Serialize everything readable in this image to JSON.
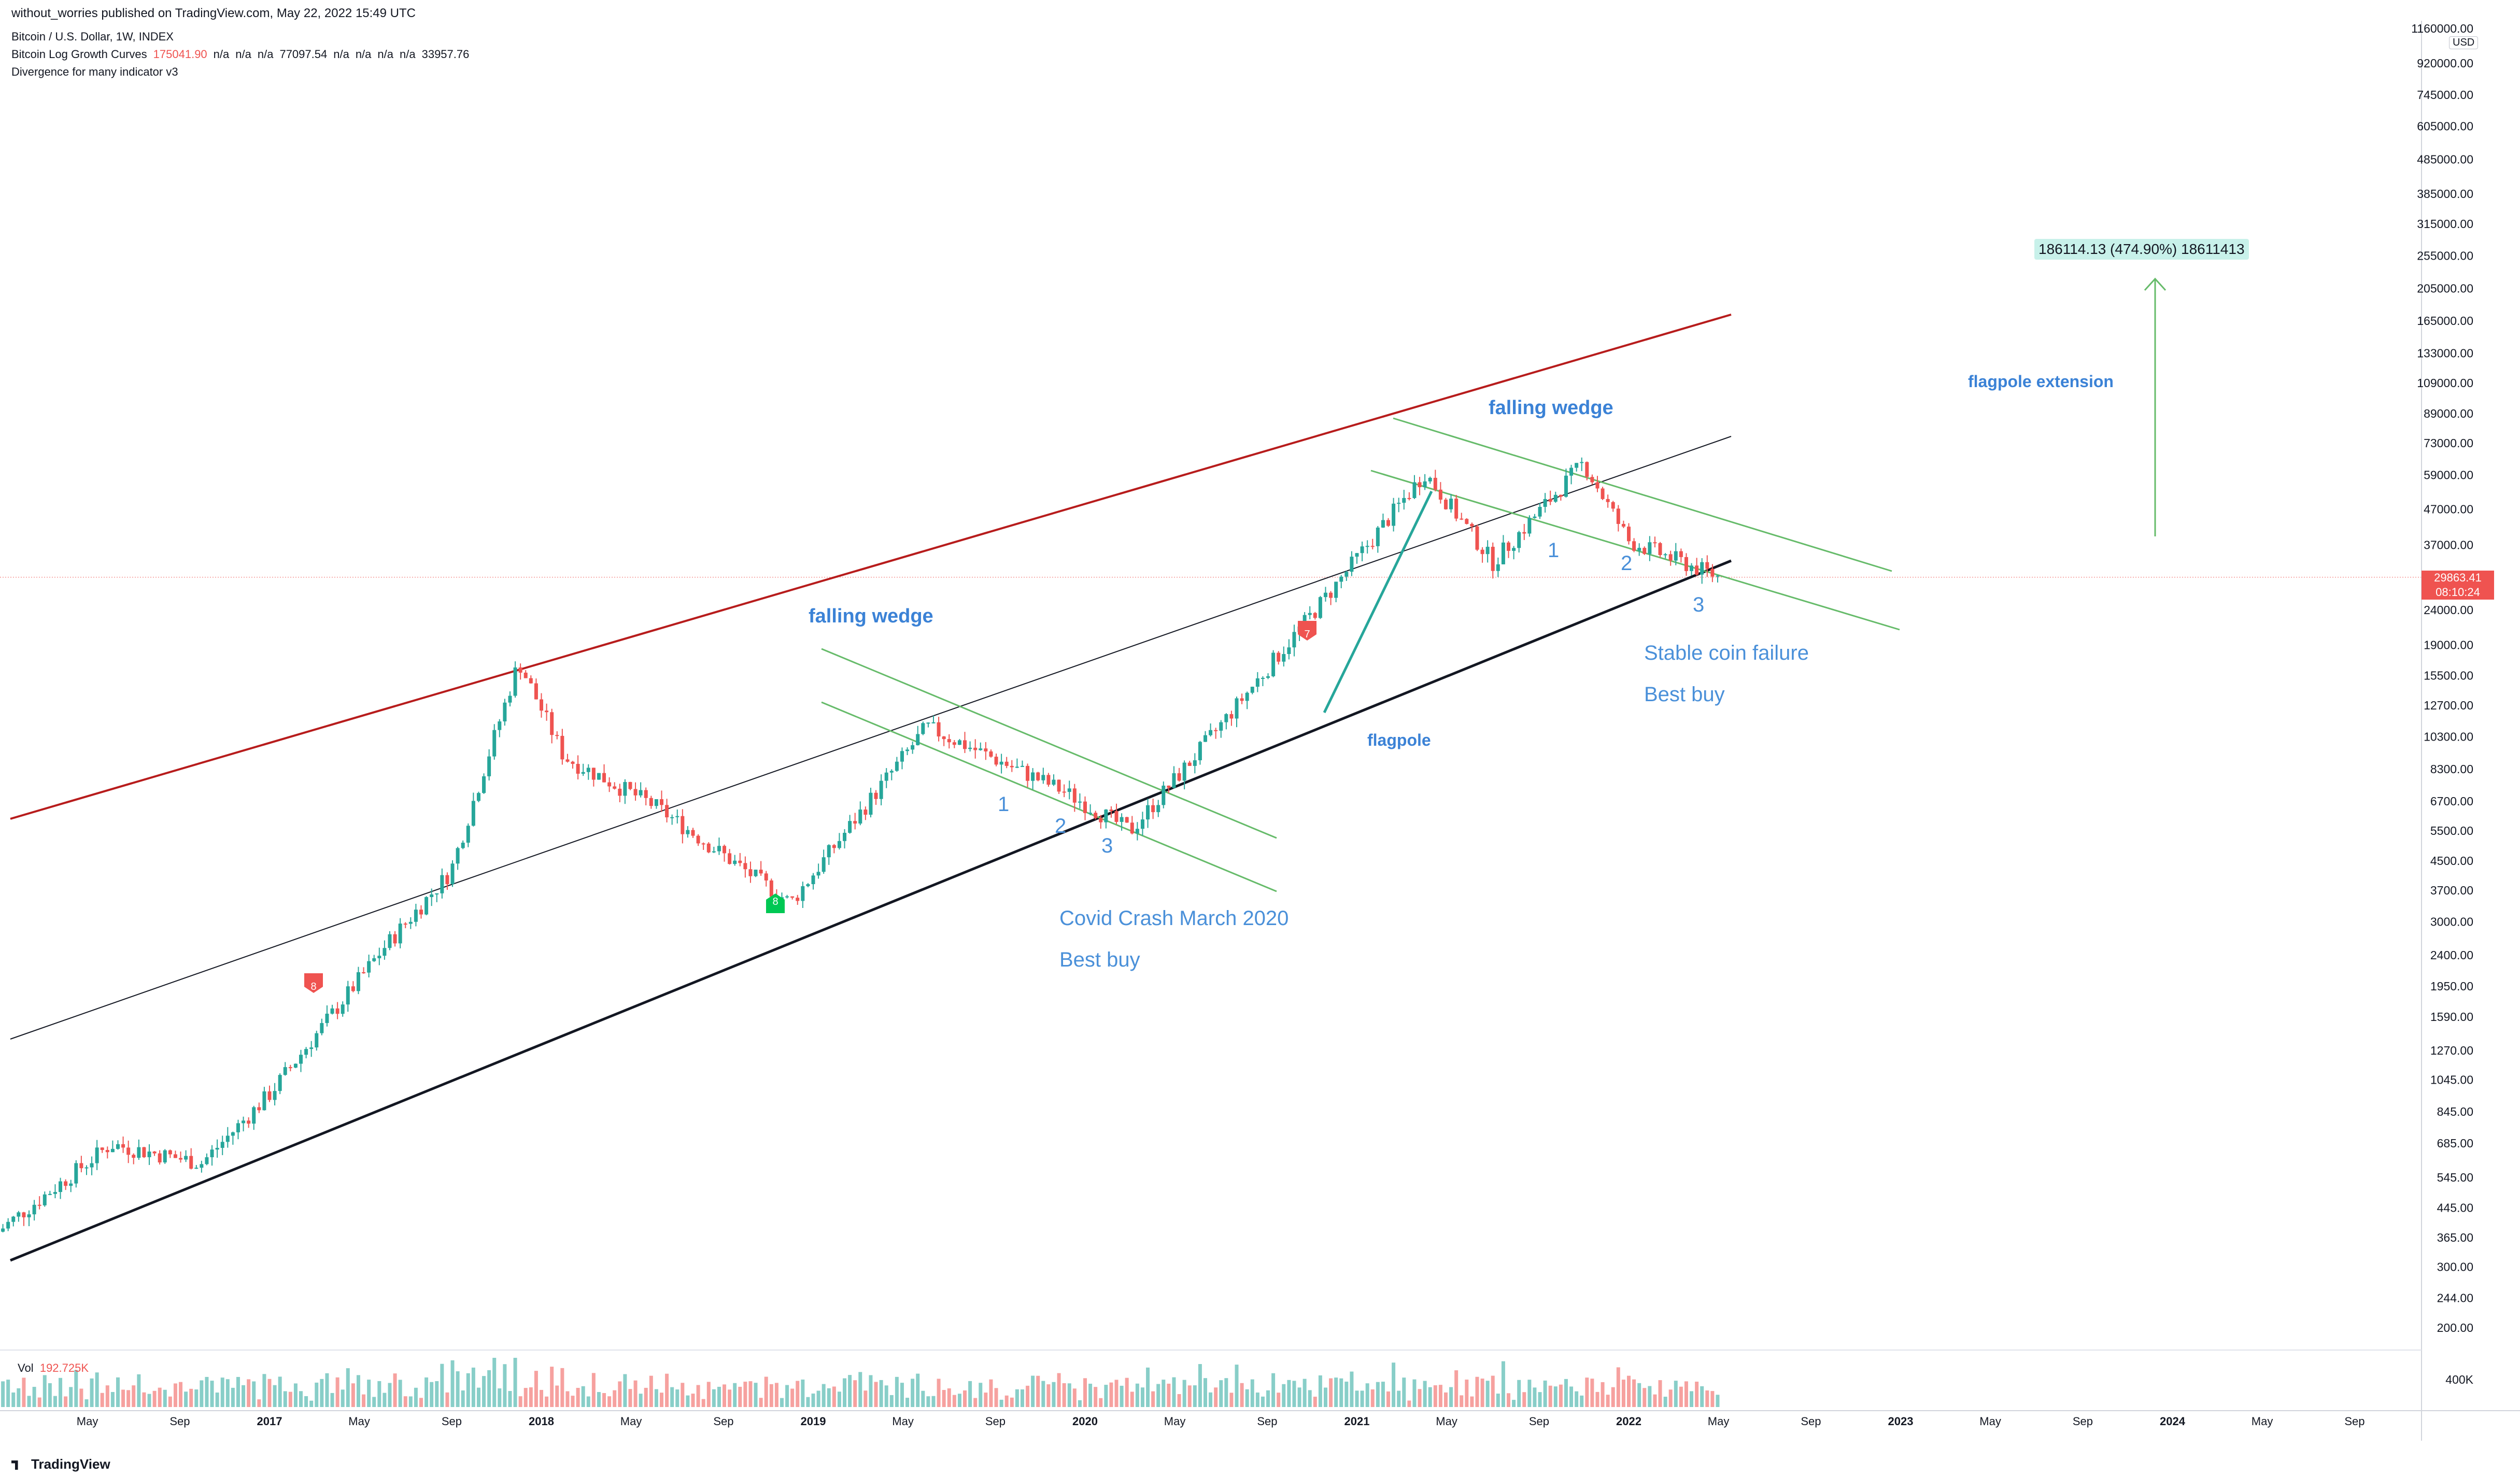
{
  "header": {
    "published_by": "without_worries published on TradingView.com, May 22, 2022 15:49 UTC",
    "symbol_line": "Bitcoin / U.S. Dollar, 1W, INDEX",
    "indicator1_name": "Bitcoin Log Growth Curves",
    "indicator1_v1": "175041.90",
    "indicator1_na1": "n/a",
    "indicator1_na2": "n/a",
    "indicator1_na3": "n/a",
    "indicator1_v2": "77097.54",
    "indicator1_na4": "n/a",
    "indicator1_na5": "n/a",
    "indicator1_na6": "n/a",
    "indicator1_na7": "n/a",
    "indicator1_v3": "33957.76",
    "indicator2_name": "Divergence for many indicator v3"
  },
  "price_axis": {
    "currency": "USD",
    "current_price": "29863.41",
    "countdown": "08:10:24"
  },
  "volume": {
    "label": "Vol",
    "value": "192.725K",
    "axis_label": "400K"
  },
  "annotations": {
    "falling_wedge_1": "falling wedge",
    "falling_wedge_2": "falling wedge",
    "covid": "Covid Crash March 2020",
    "best_buy_1": "Best buy",
    "stable_coin": "Stable coin failure",
    "best_buy_2": "Best buy",
    "flagpole": "flagpole",
    "flagpole_extension": "flagpole extension",
    "measure": "186114.13 (474.90%) 18611413",
    "n1a": "1",
    "n2a": "2",
    "n3a": "3",
    "n1b": "1",
    "n2b": "2",
    "n3b": "3",
    "sig_a": "8",
    "sig_b": "8",
    "sig_c": "7"
  },
  "branding": "TradingView",
  "colors": {
    "up": "#26a69a",
    "down": "#ef5350",
    "resistance": "#b71c1c",
    "wedge": "#66bb6a",
    "flagpole": "#26a69a",
    "support": "#131722"
  },
  "chart_data": {
    "type": "candlestick",
    "title": "Bitcoin / U.S. Dollar, 1W, INDEX",
    "y_scale": "log",
    "y_ticks": [
      1160000,
      920000,
      745000,
      605000,
      485000,
      385000,
      315000,
      255000,
      205000,
      165000,
      133000,
      109000,
      89000,
      73000,
      59000,
      47000,
      37000,
      29863.41,
      24000,
      19000,
      15500,
      12700,
      10300,
      8300,
      6700,
      5500,
      4500,
      3700,
      3000,
      2400,
      1950,
      1590,
      1270,
      1045,
      845,
      685,
      545,
      445,
      365,
      300,
      244,
      200
    ],
    "y_tick_labels": [
      "1160000.00",
      "920000.00",
      "745000.00",
      "605000.00",
      "485000.00",
      "385000.00",
      "315000.00",
      "255000.00",
      "205000.00",
      "165000.00",
      "133000.00",
      "109000.00",
      "89000.00",
      "73000.00",
      "59000.00",
      "47000.00",
      "37000.00",
      "",
      "24000.00",
      "19000.00",
      "15500.00",
      "12700.00",
      "10300.00",
      "8300.00",
      "6700.00",
      "5500.00",
      "4500.00",
      "3700.00",
      "3000.00",
      "2400.00",
      "1950.00",
      "1590.00",
      "1270.00",
      "1045.00",
      "845.00",
      "685.00",
      "545.00",
      "445.00",
      "365.00",
      "300.00",
      "244.00",
      "200.00"
    ],
    "x_labels": [
      "May",
      "Sep",
      "2017",
      "May",
      "Sep",
      "2018",
      "May",
      "Sep",
      "2019",
      "May",
      "Sep",
      "2020",
      "May",
      "Sep",
      "2021",
      "May",
      "Sep",
      "2022",
      "May",
      "Sep",
      "2023",
      "May",
      "Sep",
      "2024",
      "May",
      "Sep"
    ],
    "series_anchor": [
      {
        "date": "2016-01",
        "close": 380
      },
      {
        "date": "2016-06",
        "close": 680
      },
      {
        "date": "2016-10",
        "close": 600
      },
      {
        "date": "2017-01",
        "close": 950
      },
      {
        "date": "2017-06",
        "close": 2500
      },
      {
        "date": "2017-09",
        "close": 4200
      },
      {
        "date": "2017-12",
        "close": 17000
      },
      {
        "date": "2018-02",
        "close": 9000
      },
      {
        "date": "2018-06",
        "close": 6500
      },
      {
        "date": "2018-12",
        "close": 3400
      },
      {
        "date": "2019-06",
        "close": 11000
      },
      {
        "date": "2019-12",
        "close": 7200
      },
      {
        "date": "2020-03",
        "close": 5500
      },
      {
        "date": "2020-06",
        "close": 9300
      },
      {
        "date": "2020-12",
        "close": 28000
      },
      {
        "date": "2021-04",
        "close": 60000
      },
      {
        "date": "2021-07",
        "close": 33000
      },
      {
        "date": "2021-11",
        "close": 64000
      },
      {
        "date": "2022-01",
        "close": 38000
      },
      {
        "date": "2022-05",
        "close": 29863.41
      }
    ]
  }
}
